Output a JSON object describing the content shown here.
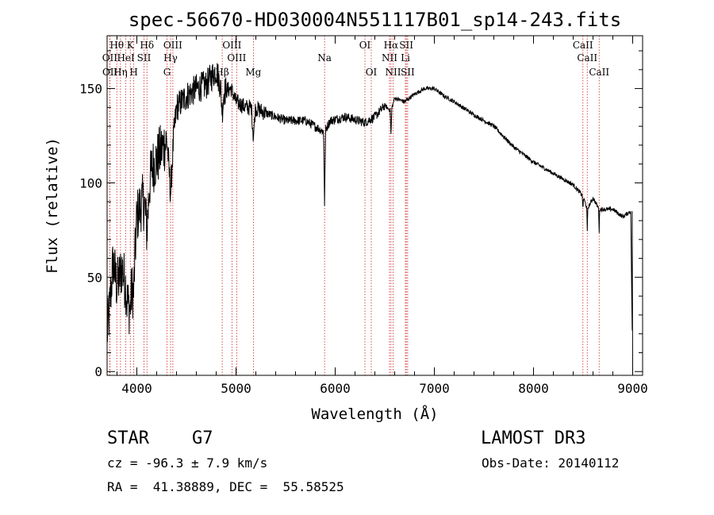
{
  "chart_data": {
    "type": "line",
    "title": "spec-56670-HD030004N551117B01_sp14-243.fits",
    "xlabel": "Wavelength (Å)",
    "ylabel": "Flux (relative)",
    "xlim": [
      3700,
      9100
    ],
    "ylim": [
      -2,
      178
    ],
    "xticks": [
      4000,
      5000,
      6000,
      7000,
      8000,
      9000
    ],
    "yticks": [
      0,
      50,
      100,
      150
    ],
    "grid": false,
    "spectrum_anchor_points": {
      "x": [
        3700,
        3720,
        3760,
        3800,
        3850,
        3900,
        3950,
        4000,
        4050,
        4100,
        4150,
        4200,
        4250,
        4300,
        4340,
        4400,
        4450,
        4500,
        4600,
        4700,
        4800,
        4860,
        4950,
        5000,
        5100,
        5180,
        5300,
        5500,
        5700,
        5890,
        5950,
        6100,
        6300,
        6400,
        6500,
        6563,
        6600,
        6700,
        6800,
        6900,
        7000,
        7100,
        7200,
        7400,
        7600,
        7800,
        8000,
        8200,
        8400,
        8498,
        8542,
        8600,
        8662,
        8800,
        8900,
        8980,
        9000
      ],
      "y": [
        20,
        30,
        58,
        45,
        55,
        42,
        72,
        82,
        90,
        88,
        108,
        112,
        118,
        122,
        108,
        140,
        143,
        146,
        150,
        152,
        160,
        148,
        150,
        143,
        140,
        140,
        137,
        133,
        133,
        127,
        133,
        135,
        132,
        135,
        141,
        138,
        145,
        143,
        147,
        150,
        150,
        146,
        143,
        136,
        130,
        119,
        111,
        105,
        99,
        93,
        86,
        92,
        86,
        86,
        82,
        85,
        0
      ]
    },
    "emission_lines": [
      {
        "label": "Hθ",
        "wl": 3798,
        "row": 1
      },
      {
        "label": "K",
        "wl": 3934,
        "row": 1
      },
      {
        "label": "Hδ",
        "wl": 4102,
        "row": 1
      },
      {
        "label": "OIII",
        "wl": 4363,
        "row": 1
      },
      {
        "label": "OIII",
        "wl": 4959,
        "row": 1
      },
      {
        "label": "OI",
        "wl": 6300,
        "row": 1
      },
      {
        "label": "Hα",
        "wl": 6563,
        "row": 1
      },
      {
        "label": "SII",
        "wl": 6717,
        "row": 1
      },
      {
        "label": "CaII",
        "wl": 8498,
        "row": 1
      },
      {
        "label": "OII",
        "wl": 3727,
        "row": 2
      },
      {
        "label": "HeI",
        "wl": 3889,
        "row": 2
      },
      {
        "label": "SII",
        "wl": 4072,
        "row": 2
      },
      {
        "label": "Hγ",
        "wl": 4340,
        "row": 2
      },
      {
        "label": "OIII",
        "wl": 5007,
        "row": 2
      },
      {
        "label": "Na",
        "wl": 5893,
        "row": 2
      },
      {
        "label": "NII",
        "wl": 6548,
        "row": 2
      },
      {
        "label": "Li",
        "wl": 6708,
        "row": 2
      },
      {
        "label": "CaII",
        "wl": 8542,
        "row": 2
      },
      {
        "label": "OII",
        "wl": 3729,
        "row": 3
      },
      {
        "label": "Hη",
        "wl": 3835,
        "row": 3
      },
      {
        "label": "H",
        "wl": 3969,
        "row": 3
      },
      {
        "label": "G",
        "wl": 4304,
        "row": 3
      },
      {
        "label": "Hβ",
        "wl": 4861,
        "row": 3
      },
      {
        "label": "Mg",
        "wl": 5175,
        "row": 3
      },
      {
        "label": "OI",
        "wl": 6364,
        "row": 3
      },
      {
        "label": "NII",
        "wl": 6584,
        "row": 3
      },
      {
        "label": "SII",
        "wl": 6731,
        "row": 3
      },
      {
        "label": "CaII",
        "wl": 8662,
        "row": 3
      }
    ]
  },
  "info": {
    "object_class": "STAR",
    "subclass": "G7",
    "survey": "LAMOST DR3",
    "cz": "cz = -96.3 ± 7.9 km/s",
    "obs_date": "Obs-Date: 20140112",
    "coords": "RA =  41.38889, DEC =  55.58525"
  },
  "colors": {
    "line_marker": "#cc2222",
    "spectrum": "#000000"
  }
}
